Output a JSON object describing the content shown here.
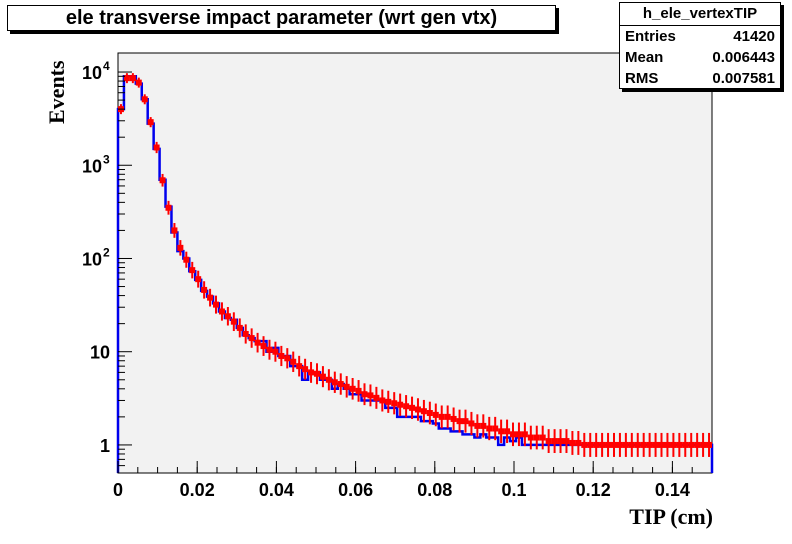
{
  "chart_data": {
    "type": "histogram",
    "title": "ele transverse impact parameter (wrt gen vtx)",
    "xlabel": "TIP (cm)",
    "ylabel": "Events",
    "xlim": [
      0,
      0.15
    ],
    "ylim": [
      0.5,
      16000
    ],
    "yscale": "log",
    "grid": false,
    "x_ticks": [
      {
        "v": 0,
        "label": "0"
      },
      {
        "v": 0.02,
        "label": "0.02"
      },
      {
        "v": 0.04,
        "label": "0.04"
      },
      {
        "v": 0.06,
        "label": "0.06"
      },
      {
        "v": 0.08,
        "label": "0.08"
      },
      {
        "v": 0.1,
        "label": "0.1"
      },
      {
        "v": 0.12,
        "label": "0.12"
      },
      {
        "v": 0.14,
        "label": "0.14"
      }
    ],
    "y_ticks": [
      {
        "v": 1,
        "label": "1"
      },
      {
        "v": 10,
        "label": "10"
      },
      {
        "v": 100,
        "label": "10",
        "exp": "2"
      },
      {
        "v": 1000,
        "label": "10",
        "exp": "3"
      },
      {
        "v": 10000,
        "label": "10",
        "exp": "4"
      }
    ],
    "stats": {
      "name": "h_ele_vertexTIP",
      "rows": [
        {
          "label": "Entries",
          "value": "41420"
        },
        {
          "label": "Mean",
          "value": "0.006443"
        },
        {
          "label": "RMS",
          "value": "0.007581"
        }
      ]
    },
    "series": [
      {
        "style": "step",
        "color": "#0000ee",
        "bin_width": 0.0015,
        "values": [
          4000,
          9000,
          9000,
          7500,
          5100,
          2800,
          1500,
          700,
          360,
          190,
          120,
          100,
          73,
          59,
          45,
          39,
          33,
          27,
          23,
          22,
          18,
          15,
          14,
          13,
          13,
          10,
          11,
          9,
          9,
          7,
          7,
          5,
          6,
          6,
          5,
          5,
          4,
          4.5,
          4,
          3.5,
          3.5,
          3,
          3,
          3,
          3,
          2.5,
          2.5,
          2,
          2,
          2,
          2,
          1.8,
          1.8,
          1.7,
          1.5,
          1.5,
          1.4,
          1.4,
          1.3,
          1.3,
          1.2,
          1.3,
          1.2,
          1.2,
          1,
          1.2,
          1.1,
          1.2,
          1,
          1,
          1,
          1,
          1,
          1,
          1,
          1,
          1,
          1,
          1,
          1,
          1,
          1,
          1,
          1,
          1,
          1,
          1,
          1,
          1,
          1,
          1,
          1,
          1,
          1,
          1,
          1,
          1,
          1,
          1,
          1
        ]
      },
      {
        "style": "points",
        "color": "#ff0000",
        "bin_width": 0.0015,
        "values": [
          4000,
          8600,
          8600,
          7700,
          5100,
          2900,
          1550,
          690,
          350,
          200,
          130,
          97,
          75,
          60,
          46,
          38,
          32,
          27,
          24,
          21,
          18,
          15.5,
          14,
          12.5,
          11.5,
          10.5,
          10,
          9,
          8.5,
          7.8,
          7,
          6.5,
          6,
          5.8,
          5.4,
          5,
          4.7,
          4.5,
          4.2,
          4,
          3.8,
          3.5,
          3.4,
          3.2,
          3,
          2.9,
          2.8,
          2.7,
          2.6,
          2.5,
          2.4,
          2.3,
          2.2,
          2.1,
          2,
          2,
          1.9,
          1.8,
          1.8,
          1.7,
          1.6,
          1.6,
          1.5,
          1.5,
          1.4,
          1.4,
          1.3,
          1.3,
          1.3,
          1.2,
          1.2,
          1.2,
          1.1,
          1.1,
          1.1,
          1.1,
          1.05,
          1.05,
          1,
          1,
          1,
          1,
          1,
          1,
          1,
          1,
          1,
          1,
          1,
          1,
          1,
          1,
          1,
          1,
          1,
          1,
          1,
          1,
          1,
          1
        ]
      }
    ]
  }
}
